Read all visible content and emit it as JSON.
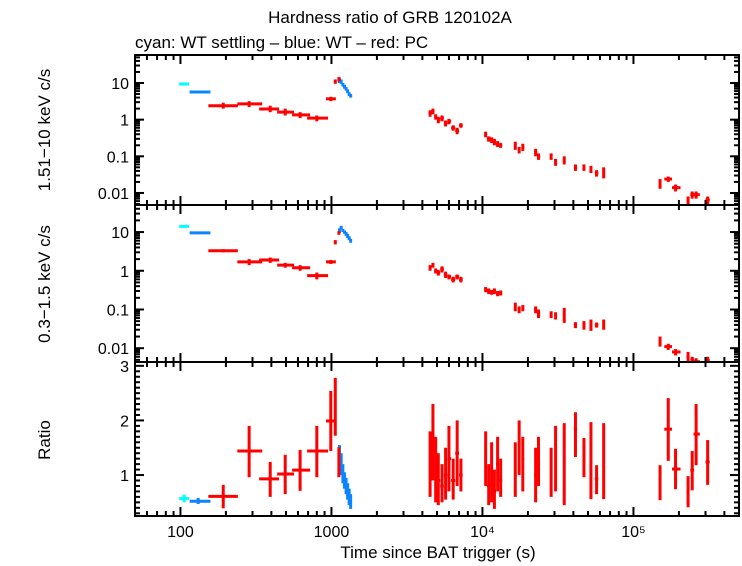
{
  "chart_data": {
    "type": "scatter",
    "title": "Hardness ratio of GRB 120102A",
    "subtitle": "cyan: WT settling – blue: WT – red: PC",
    "xlabel": "Time since BAT trigger (s)",
    "xscale": "log",
    "xlim": [
      50,
      500000
    ],
    "x_ticks": [
      {
        "value": 100,
        "label": "100"
      },
      {
        "value": 1000,
        "label": "1000"
      },
      {
        "value": 10000,
        "label": "10⁴"
      },
      {
        "value": 100000,
        "label": "10⁵"
      }
    ],
    "panels": [
      {
        "key": "hard",
        "ylabel": "1.51−10 keV c/s",
        "yscale": "log",
        "ylim": [
          0.0047,
          58
        ],
        "y_ticks": [
          {
            "value": 10,
            "label": "10"
          },
          {
            "value": 1,
            "label": "1"
          },
          {
            "value": 0.1,
            "label": "0.1"
          },
          {
            "value": 0.01,
            "label": "0.01"
          }
        ]
      },
      {
        "key": "soft",
        "ylabel": "0.3−1.5 keV c/s",
        "yscale": "log",
        "ylim": [
          0.0044,
          50
        ],
        "y_ticks": [
          {
            "value": 10,
            "label": "10"
          },
          {
            "value": 1,
            "label": "1"
          },
          {
            "value": 0.1,
            "label": "0.1"
          },
          {
            "value": 0.01,
            "label": "0.01"
          }
        ]
      },
      {
        "key": "ratio",
        "ylabel": "Ratio",
        "yscale": "linear",
        "ylim": [
          0.25,
          3.07
        ],
        "y_ticks": [
          {
            "value": 3,
            "label": "3"
          },
          {
            "value": 2,
            "label": "2"
          },
          {
            "value": 1,
            "label": "1"
          }
        ]
      }
    ],
    "grid": false,
    "columns": [
      "t",
      "t_lo",
      "t_hi",
      "hard",
      "hard_lo",
      "hard_hi",
      "soft",
      "soft_lo",
      "soft_hi",
      "ratio",
      "ratio_lo",
      "ratio_hi"
    ],
    "series": [
      {
        "name": "WT settling",
        "color": "#00ffff",
        "points": [
          [
            106,
            98,
            114,
            9.4,
            8.6,
            10.3,
            14,
            12.8,
            15.3,
            0.57,
            0.5,
            0.64
          ]
        ]
      },
      {
        "name": "WT",
        "color": "#0a84ff",
        "points": [
          [
            131,
            115,
            158,
            5.7,
            5.2,
            6.2,
            9.5,
            8.8,
            10.2,
            0.52,
            0.47,
            0.58
          ],
          [
            1130,
            1115,
            1145,
            12,
            10,
            14,
            11,
            9.5,
            12.5,
            1.45,
            1.2,
            1.55
          ],
          [
            1160,
            1145,
            1175,
            11,
            9.5,
            12.5,
            13,
            11.5,
            14.5,
            1.2,
            1.0,
            1.4
          ],
          [
            1190,
            1175,
            1205,
            9,
            8,
            10,
            11,
            10,
            12,
            1.0,
            0.85,
            1.2
          ],
          [
            1220,
            1205,
            1235,
            8,
            7,
            9,
            10,
            9,
            11,
            0.9,
            0.75,
            1.05
          ],
          [
            1250,
            1235,
            1265,
            7,
            6.2,
            7.8,
            9,
            8,
            10,
            0.8,
            0.65,
            0.95
          ],
          [
            1280,
            1265,
            1295,
            6,
            5.3,
            6.7,
            8,
            7,
            9,
            0.7,
            0.55,
            0.85
          ],
          [
            1310,
            1295,
            1325,
            5,
            4.4,
            5.6,
            7,
            6.2,
            7.8,
            0.6,
            0.45,
            0.75
          ],
          [
            1340,
            1325,
            1355,
            4.5,
            4,
            5,
            6,
            5.3,
            6.7,
            0.5,
            0.38,
            0.65
          ]
        ]
      },
      {
        "name": "PC",
        "color": "#ff0000",
        "points": [
          [
            192,
            153,
            240,
            2.4,
            2.0,
            2.9,
            3.3,
            3.0,
            3.6,
            0.61,
            0.39,
            0.82
          ],
          [
            285,
            238,
            348,
            2.7,
            2.2,
            3.2,
            1.7,
            1.4,
            2.0,
            1.44,
            0.96,
            1.9
          ],
          [
            393,
            332,
            450,
            1.95,
            1.6,
            2.4,
            1.9,
            1.6,
            2.2,
            0.93,
            0.6,
            1.24
          ],
          [
            494,
            437,
            565,
            1.6,
            1.3,
            2.0,
            1.4,
            1.2,
            1.6,
            1.02,
            0.65,
            1.37
          ],
          [
            620,
            549,
            722,
            1.35,
            1.1,
            1.6,
            1.2,
            1.0,
            1.4,
            1.09,
            0.71,
            1.46
          ],
          [
            800,
            690,
            950,
            1.1,
            0.9,
            1.3,
            0.75,
            0.6,
            0.9,
            1.44,
            0.96,
            1.9
          ],
          [
            990,
            920,
            1070,
            3.7,
            3.2,
            4.2,
            1.7,
            1.5,
            1.9,
            1.99,
            1.44,
            2.54
          ],
          [
            1060,
            1040,
            1080,
            11,
            9.5,
            12.5,
            5.5,
            4.8,
            6.2,
            2.27,
            1.72,
            2.78
          ],
          [
            1120,
            1100,
            1140,
            12.8,
            11,
            14.5,
            9.5,
            8.5,
            10.5,
            1.24,
            0.96,
            1.51
          ],
          [
            4500,
            4400,
            4600,
            1.5,
            1.2,
            1.8,
            1.2,
            1.0,
            1.4,
            1.2,
            0.6,
            1.8
          ],
          [
            4700,
            4600,
            4800,
            1.7,
            1.4,
            2.0,
            1.4,
            1.2,
            1.6,
            1.6,
            0.9,
            2.3
          ],
          [
            4900,
            4800,
            5000,
            1.2,
            1.0,
            1.4,
            1.0,
            0.85,
            1.15,
            1.1,
            0.5,
            1.7
          ],
          [
            5100,
            5000,
            5250,
            1.0,
            0.8,
            1.2,
            0.9,
            0.75,
            1.05,
            0.9,
            0.45,
            1.4
          ],
          [
            5400,
            5250,
            5550,
            1.1,
            0.9,
            1.3,
            1.1,
            0.9,
            1.3,
            0.8,
            0.5,
            1.2
          ],
          [
            5700,
            5550,
            5850,
            0.8,
            0.65,
            0.95,
            0.8,
            0.65,
            0.95,
            1.0,
            0.55,
            1.5
          ],
          [
            6000,
            5850,
            6200,
            0.9,
            0.75,
            1.05,
            0.7,
            0.6,
            0.8,
            1.3,
            0.7,
            1.9
          ],
          [
            6400,
            6200,
            6600,
            0.6,
            0.5,
            0.7,
            0.6,
            0.5,
            0.7,
            0.9,
            0.55,
            1.3
          ],
          [
            6800,
            6600,
            7000,
            0.5,
            0.4,
            0.6,
            0.7,
            0.6,
            0.8,
            1.4,
            0.8,
            2.0
          ],
          [
            7200,
            7000,
            7400,
            0.7,
            0.6,
            0.8,
            0.6,
            0.5,
            0.7,
            1.0,
            0.7,
            1.3
          ],
          [
            10500,
            10300,
            10700,
            0.4,
            0.33,
            0.47,
            0.33,
            0.28,
            0.38,
            1.3,
            0.8,
            1.8
          ],
          [
            11000,
            10700,
            11300,
            0.3,
            0.25,
            0.35,
            0.3,
            0.25,
            0.35,
            0.8,
            0.45,
            1.2
          ],
          [
            11500,
            11300,
            11700,
            0.28,
            0.23,
            0.33,
            0.28,
            0.24,
            0.32,
            1.0,
            0.5,
            1.6
          ],
          [
            12000,
            11700,
            12300,
            0.25,
            0.2,
            0.3,
            0.3,
            0.25,
            0.35,
            0.7,
            0.38,
            1.1
          ],
          [
            12600,
            12300,
            12900,
            0.22,
            0.18,
            0.26,
            0.26,
            0.22,
            0.3,
            1.2,
            0.7,
            1.7
          ],
          [
            13200,
            12900,
            13500,
            0.2,
            0.17,
            0.23,
            0.27,
            0.23,
            0.31,
            0.9,
            0.6,
            1.3
          ],
          [
            16500,
            16200,
            16800,
            0.2,
            0.15,
            0.25,
            0.12,
            0.09,
            0.15,
            1.1,
            0.6,
            1.6
          ],
          [
            17500,
            17200,
            17800,
            0.15,
            0.12,
            0.18,
            0.1,
            0.08,
            0.12,
            1.5,
            1.0,
            2.0
          ],
          [
            18500,
            18200,
            18900,
            0.18,
            0.14,
            0.22,
            0.11,
            0.09,
            0.13,
            1.3,
            0.7,
            1.7
          ],
          [
            22500,
            22000,
            23000,
            0.13,
            0.1,
            0.16,
            0.1,
            0.08,
            0.12,
            1.0,
            0.5,
            1.5
          ],
          [
            23500,
            23000,
            24100,
            0.1,
            0.08,
            0.12,
            0.08,
            0.06,
            0.1,
            1.2,
            0.8,
            1.7
          ],
          [
            28500,
            28000,
            29000,
            0.1,
            0.08,
            0.12,
            0.075,
            0.06,
            0.09,
            1.0,
            0.6,
            1.5
          ],
          [
            30500,
            30000,
            31000,
            0.07,
            0.055,
            0.085,
            0.07,
            0.055,
            0.085,
            1.3,
            0.7,
            1.9
          ],
          [
            34800,
            34300,
            35300,
            0.08,
            0.06,
            0.1,
            0.07,
            0.045,
            0.11,
            1.2,
            0.45,
            1.95
          ],
          [
            41300,
            40300,
            42300,
            0.05,
            0.04,
            0.06,
            0.04,
            0.033,
            0.047,
            1.85,
            1.33,
            2.15
          ],
          [
            47000,
            46000,
            48000,
            0.05,
            0.04,
            0.06,
            0.04,
            0.03,
            0.05,
            1.3,
            0.96,
            1.68
          ],
          [
            52300,
            51800,
            52800,
            0.045,
            0.035,
            0.055,
            0.04,
            0.028,
            0.055,
            1.3,
            0.56,
            1.97
          ],
          [
            57000,
            55500,
            58500,
            0.035,
            0.028,
            0.042,
            0.04,
            0.034,
            0.046,
            0.93,
            0.65,
            1.18
          ],
          [
            63500,
            63000,
            64000,
            0.035,
            0.025,
            0.05,
            0.04,
            0.03,
            0.055,
            1.0,
            0.56,
            1.95
          ],
          [
            150000,
            148000,
            152000,
            0.018,
            0.013,
            0.024,
            0.015,
            0.011,
            0.02,
            0.9,
            0.54,
            1.18
          ],
          [
            170000,
            160000,
            180000,
            0.024,
            0.02,
            0.028,
            0.011,
            0.009,
            0.013,
            1.84,
            1.26,
            2.41
          ],
          [
            190000,
            180000,
            205000,
            0.014,
            0.011,
            0.017,
            0.008,
            0.0065,
            0.0095,
            1.11,
            0.74,
            1.48
          ],
          [
            230000,
            225000,
            235000,
            0.006,
            0.0045,
            0.008,
            0.006,
            0.0045,
            0.008,
            0.7,
            0.41,
            0.98
          ],
          [
            245000,
            238000,
            252000,
            0.009,
            0.007,
            0.011,
            0.005,
            0.004,
            0.006,
            1.09,
            0.72,
            1.44
          ],
          [
            260000,
            250000,
            275000,
            0.009,
            0.007,
            0.011,
            0.0045,
            0.0036,
            0.0055,
            1.75,
            1.18,
            2.3
          ],
          [
            310000,
            300000,
            320000,
            0.0065,
            0.005,
            0.008,
            0.0048,
            0.0038,
            0.006,
            1.24,
            0.82,
            1.64
          ]
        ]
      }
    ]
  }
}
